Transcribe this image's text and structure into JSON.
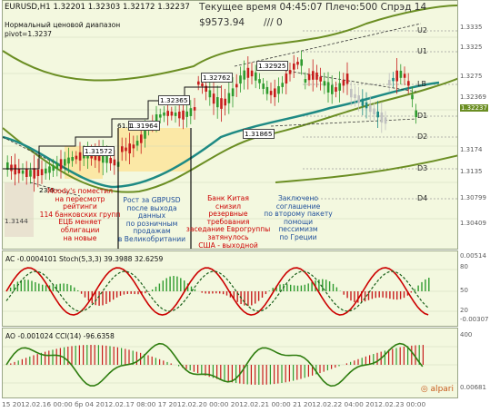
{
  "header": {
    "symbol_info": "EURUSD,H1  1.32201 1.32303 1.32172 1.32237",
    "time_info": "Текущее время 04:45:07 Плечо:500 Спрэд 14",
    "balance": "$9573.94",
    "indicator": "/// 0",
    "channel_label": "Нормальный ценовой диапазон",
    "pivot_label": "pivot=1.3237"
  },
  "boxes": [
    "1.32365",
    "1.32762",
    "1.32925",
    "1.31964",
    "1.31865",
    "1.31572",
    "61.1",
    "23.6",
    "1.3144"
  ],
  "levels": {
    "u2": "U2",
    "u1": "U1",
    "lb": "LB",
    "d1": "D1",
    "d2": "D2",
    "d3": "D3",
    "d4": "D4"
  },
  "notes": [
    "Moody's поместил\nна пересмотр\nрейтинги\n114 банковских групп\nЕЦБ меняет\nоблигации\nна новые",
    "Рост за GBPUSD\nпосле выхода\nданных\nпо розничным\nпродажам\nв Великобритании",
    "Банк Китая\nснизил\nрезервные\nтребования\nзаседание Еврогруппы\nзатянулось\nСША - выходной",
    "Заключено\nсоглашение\nпо второму пакету\nпомощи\nпессимизм\nпо Греции"
  ],
  "panes": {
    "ac_label": "AC -0.0004101   Stoch(5,3,3) 39.3988 32.6259",
    "ao_label": "AO -0.001024   CCI(14) -96.6358"
  },
  "brand": "alpari",
  "time_axis": "15 2012.02.16 00:00   бр 04   2012.02.17 08:00   17 2012.02.20 00:00   2012.02.21 00:00   21 2012.02.22 04:00   2012.02.23 00:00",
  "price_axis": [
    "1.3335",
    "1.3325",
    "1.3275",
    "1.32369",
    "1.32237",
    "1.3174",
    "1.3135",
    "1.30799",
    "1.30409"
  ],
  "ac_axis": [
    "0.00514",
    "80",
    "50",
    "20",
    "-0.00307"
  ],
  "ao_axis": [
    "400",
    "0.00681"
  ],
  "colors": {
    "up_candle": "#2e9b2e",
    "down_candle": "#c71c1c",
    "band": "#6b8e23",
    "ma": "#1e8a84",
    "bg": "#f3f8df"
  }
}
